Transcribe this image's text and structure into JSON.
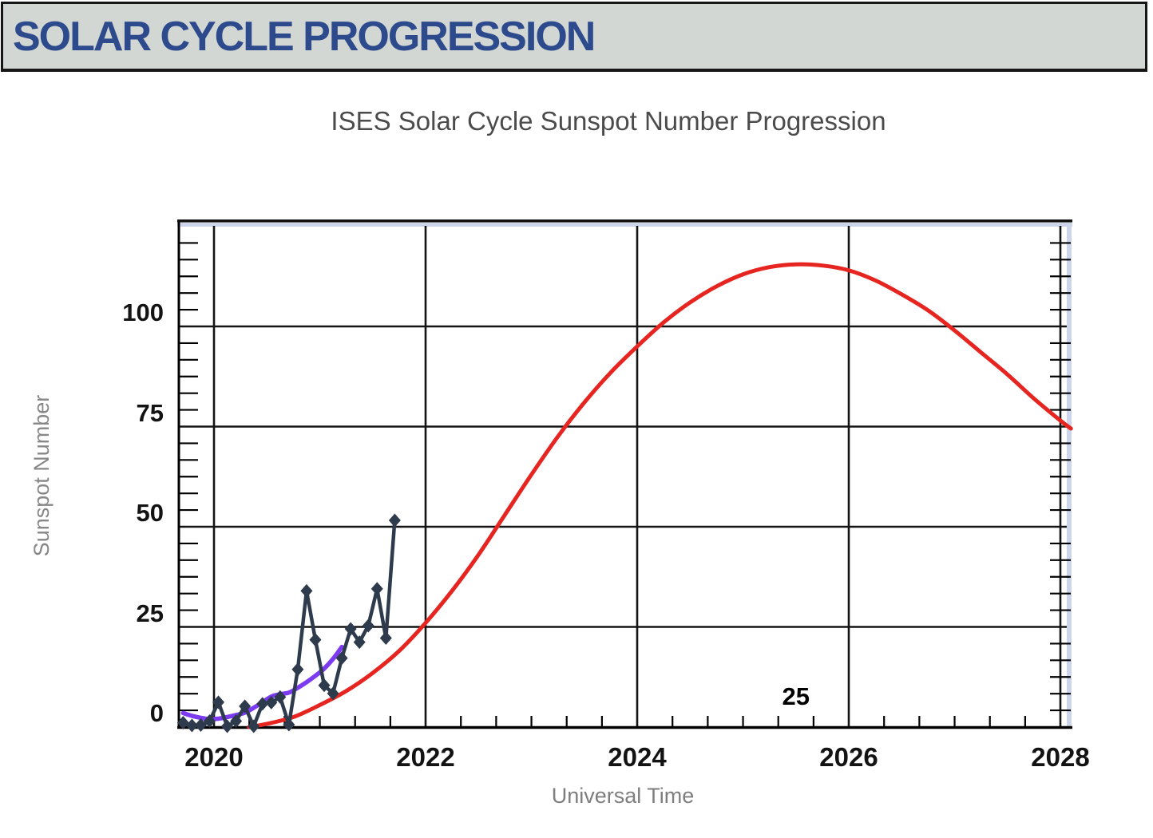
{
  "header": {
    "title": "SOLAR CYCLE PROGRESSION"
  },
  "chart_data": {
    "type": "line",
    "title": "ISES Solar Cycle Sunspot Number Progression",
    "xlabel": "Universal Time",
    "ylabel": "Sunspot Number",
    "xlim": [
      2019.66,
      2028.1
    ],
    "ylim": [
      0,
      126.5
    ],
    "x_ticks": [
      2020,
      2022,
      2024,
      2026,
      2028
    ],
    "y_ticks": [
      0,
      25,
      50,
      75,
      100
    ],
    "x_minor_tick_step_years": 0.3333,
    "y_minor_ticks_per_major": 6,
    "grid": true,
    "legend": "none",
    "annotations": [
      {
        "text": "25",
        "x": 2025.5,
        "y": 7.6
      }
    ],
    "series": [
      {
        "id": "observed-monthly",
        "style": "line+diamond-markers",
        "color": "#2e3b4d",
        "months": [
          "2019-09",
          "2019-10",
          "2019-11",
          "2019-12",
          "2020-01",
          "2020-02",
          "2020-03",
          "2020-04",
          "2020-05",
          "2020-06",
          "2020-07",
          "2020-08",
          "2020-09",
          "2020-10",
          "2020-11",
          "2020-12",
          "2021-01",
          "2021-02",
          "2021-03",
          "2021-04",
          "2021-05",
          "2021-06",
          "2021-07",
          "2021-08",
          "2021-09"
        ],
        "values": [
          1.1,
          0.4,
          0.5,
          1.5,
          6.2,
          0.2,
          1.5,
          5.2,
          0.2,
          5.8,
          6.1,
          7.5,
          0.6,
          14.4,
          34.0,
          21.8,
          10.4,
          8.4,
          17.2,
          24.5,
          21.2,
          25.3,
          34.5,
          22.2,
          51.6
        ]
      },
      {
        "id": "smoothed-monthly",
        "style": "line",
        "color": "#7c3bf1",
        "months": [
          "2019-09",
          "2019-10",
          "2019-11",
          "2019-12",
          "2020-01",
          "2020-02",
          "2020-03",
          "2020-04",
          "2020-05",
          "2020-06",
          "2020-07",
          "2020-08",
          "2020-09",
          "2020-10",
          "2020-11",
          "2020-12",
          "2021-01",
          "2021-02",
          "2021-03"
        ],
        "values": [
          3.5,
          2.8,
          2.3,
          2.0,
          2.1,
          2.5,
          3.0,
          3.6,
          4.8,
          6.2,
          7.6,
          8.2,
          8.6,
          9.8,
          11.2,
          12.8,
          14.6,
          17.0,
          20.0
        ]
      },
      {
        "id": "predicted",
        "style": "line",
        "color": "#e62420",
        "x": [
          2020.33,
          2020.5,
          2020.75,
          2021.0,
          2021.25,
          2021.5,
          2021.75,
          2022.0,
          2022.25,
          2022.5,
          2022.75,
          2023.0,
          2023.25,
          2023.5,
          2023.75,
          2024.0,
          2024.25,
          2024.5,
          2024.75,
          2025.0,
          2025.25,
          2025.5,
          2025.75,
          2026.0,
          2026.25,
          2026.5,
          2026.75,
          2027.0,
          2027.25,
          2027.5,
          2027.75,
          2028.0,
          2028.1
        ],
        "values": [
          0,
          0.8,
          2.5,
          5.5,
          9,
          13.5,
          19,
          26,
          34,
          43,
          53,
          63,
          72.5,
          81,
          88.5,
          95,
          101,
          106,
          110,
          113,
          114.8,
          115.5,
          115.2,
          114,
          111.5,
          108,
          104,
          99,
          93.5,
          88,
          82,
          76.5,
          74.5
        ]
      }
    ]
  },
  "colors": {
    "header_bg": "#d3d7d3",
    "header_text": "#2d4a8c",
    "header_border": "#161616",
    "grid": "#141414",
    "axis": "#000000",
    "edge_strip": "#ccd5e9",
    "tick_label": "#131313",
    "title_text": "#4b4b4b",
    "axis_title_text": "#858585",
    "observed": "#2e3b4d",
    "smoothed": "#7c3bf1",
    "predicted": "#e62420"
  }
}
